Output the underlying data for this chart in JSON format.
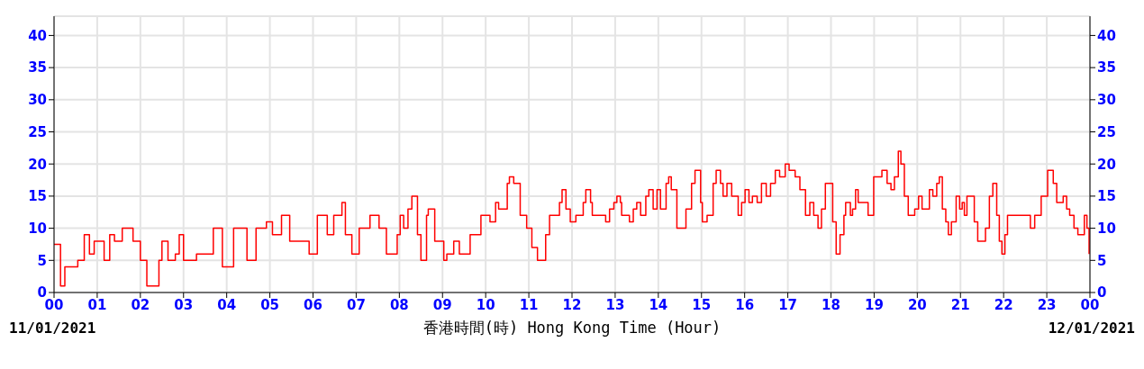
{
  "chart_data": {
    "type": "step",
    "xlabel": "香港時間(時) Hong Kong Time (Hour)",
    "annotations": [
      "11/01/2021",
      "12/01/2021"
    ],
    "xlim": [
      0,
      24
    ],
    "xticks": [
      {
        "value": 0,
        "label": "00"
      },
      {
        "value": 1,
        "label": "01"
      },
      {
        "value": 2,
        "label": "02"
      },
      {
        "value": 3,
        "label": "03"
      },
      {
        "value": 4,
        "label": "04"
      },
      {
        "value": 5,
        "label": "05"
      },
      {
        "value": 6,
        "label": "06"
      },
      {
        "value": 7,
        "label": "07"
      },
      {
        "value": 8,
        "label": "08"
      },
      {
        "value": 9,
        "label": "09"
      },
      {
        "value": 10,
        "label": "10"
      },
      {
        "value": 11,
        "label": "11"
      },
      {
        "value": 12,
        "label": "12"
      },
      {
        "value": 13,
        "label": "13"
      },
      {
        "value": 14,
        "label": "14"
      },
      {
        "value": 15,
        "label": "15"
      },
      {
        "value": 16,
        "label": "16"
      },
      {
        "value": 17,
        "label": "17"
      },
      {
        "value": 18,
        "label": "18"
      },
      {
        "value": 19,
        "label": "19"
      },
      {
        "value": 20,
        "label": "20"
      },
      {
        "value": 21,
        "label": "21"
      },
      {
        "value": 22,
        "label": "22"
      },
      {
        "value": 23,
        "label": "23"
      },
      {
        "value": 24,
        "label": "00"
      }
    ],
    "ylim": [
      0,
      43
    ],
    "yticks": [
      0,
      5,
      10,
      15,
      20,
      25,
      30,
      35,
      40
    ],
    "y2lim": [
      0,
      43
    ],
    "y2ticks": [
      0,
      5,
      10,
      15,
      20,
      25,
      30,
      35,
      40
    ],
    "grid": true,
    "marker": "none",
    "line_style": "solid",
    "series": [
      {
        "color": "#ff0000",
        "x": [
          0,
          0.15,
          0.25,
          0.46,
          0.55,
          0.7,
          0.82,
          0.93,
          1.16,
          1.29,
          1.4,
          1.58,
          1.83,
          2.0,
          2.15,
          2.3,
          2.43,
          2.5,
          2.64,
          2.81,
          2.9,
          3.0,
          3.2,
          3.3,
          3.48,
          3.69,
          3.9,
          3.97,
          4.16,
          4.24,
          4.47,
          4.68,
          4.83,
          4.92,
          5.06,
          5.27,
          5.4,
          5.46,
          5.74,
          5.91,
          6.1,
          6.25,
          6.33,
          6.48,
          6.67,
          6.75,
          6.9,
          6.97,
          7.07,
          7.2,
          7.32,
          7.53,
          7.7,
          7.8,
          7.95,
          8.02,
          8.1,
          8.2,
          8.29,
          8.42,
          8.5,
          8.63,
          8.67,
          8.82,
          9.03,
          9.1,
          9.22,
          9.26,
          9.39,
          9.51,
          9.64,
          9.75,
          9.89,
          10.0,
          10.1,
          10.23,
          10.3,
          10.5,
          10.55,
          10.65,
          10.8,
          10.95,
          11.07,
          11.2,
          11.3,
          11.39,
          11.48,
          11.6,
          11.71,
          11.77,
          11.86,
          11.96,
          12.09,
          12.26,
          12.32,
          12.43,
          12.47,
          12.76,
          12.78,
          12.87,
          12.97,
          13.04,
          13.12,
          13.15,
          13.33,
          13.42,
          13.5,
          13.59,
          13.71,
          13.78,
          13.88,
          13.97,
          14.05,
          14.18,
          14.24,
          14.3,
          14.43,
          14.5,
          14.64,
          14.77,
          14.85,
          14.98,
          15.02,
          15.13,
          15.27,
          15.34,
          15.44,
          15.5,
          15.59,
          15.7,
          15.76,
          15.85,
          15.93,
          16.01,
          16.1,
          16.18,
          16.29,
          16.39,
          16.5,
          16.6,
          16.71,
          16.81,
          16.94,
          17.03,
          17.17,
          17.28,
          17.41,
          17.51,
          17.6,
          17.7,
          17.78,
          17.87,
          17.95,
          18.04,
          18.12,
          18.21,
          18.3,
          18.34,
          18.45,
          18.5,
          18.57,
          18.63,
          18.82,
          18.86,
          18.99,
          19.18,
          19.3,
          19.39,
          19.47,
          19.56,
          19.62,
          19.7,
          19.79,
          19.87,
          19.94,
          20.03,
          20.11,
          20.28,
          20.36,
          20.45,
          20.51,
          20.58,
          20.66,
          20.72,
          20.79,
          20.9,
          20.98,
          21.04,
          21.09,
          21.15,
          21.27,
          21.32,
          21.4,
          21.48,
          21.58,
          21.67,
          21.75,
          21.84,
          21.9,
          21.96,
          22.03,
          22.09,
          22.53,
          22.62,
          22.72,
          22.87,
          23.02,
          23.15,
          23.23,
          23.38,
          23.46,
          23.53,
          23.63,
          23.72,
          23.87,
          23.93,
          23.98
        ],
        "values": [
          7.5,
          1,
          4,
          4,
          5,
          9,
          6,
          8,
          5,
          9,
          8,
          10,
          8,
          5,
          1,
          1,
          5,
          8,
          5,
          6,
          9,
          5,
          5,
          6,
          6,
          10,
          4,
          4,
          10,
          10,
          5,
          10,
          10,
          11,
          9,
          12,
          12,
          8,
          8,
          6,
          12,
          12,
          9,
          12,
          14,
          9,
          6,
          6,
          10,
          10,
          12,
          10,
          6,
          6,
          9,
          12,
          10,
          13,
          15,
          9,
          5,
          12,
          13,
          8,
          5,
          6,
          6,
          8,
          6,
          6,
          9,
          9,
          12,
          12,
          11,
          14,
          13,
          17,
          18,
          17,
          12,
          10,
          7,
          5,
          5,
          9,
          12,
          12,
          14,
          16,
          13,
          11,
          12,
          14,
          16,
          14,
          12,
          12,
          11,
          13,
          14,
          15,
          14,
          12,
          11,
          13,
          14,
          12,
          15,
          16,
          13,
          16,
          13,
          17,
          18,
          16,
          10,
          10,
          13,
          17,
          19,
          14,
          11,
          12,
          17,
          19,
          17,
          15,
          17,
          15,
          15,
          12,
          14,
          16,
          14,
          15,
          14,
          17,
          15,
          17,
          19,
          18,
          20,
          19,
          18,
          16,
          12,
          14,
          12,
          10,
          13,
          17,
          17,
          11,
          6,
          9,
          12,
          14,
          12,
          13,
          16,
          14,
          14,
          12,
          18,
          19,
          17,
          16,
          18,
          22,
          20,
          15,
          12,
          12,
          13,
          15,
          13,
          16,
          15,
          17,
          18,
          13,
          11,
          9,
          11,
          15,
          13,
          14,
          12,
          15,
          15,
          11,
          8,
          8,
          10,
          15,
          17,
          12,
          8,
          6,
          9,
          12,
          12,
          10,
          12,
          15,
          19,
          17,
          14,
          15,
          13,
          12,
          10,
          9,
          12,
          10,
          6
        ]
      }
    ]
  }
}
